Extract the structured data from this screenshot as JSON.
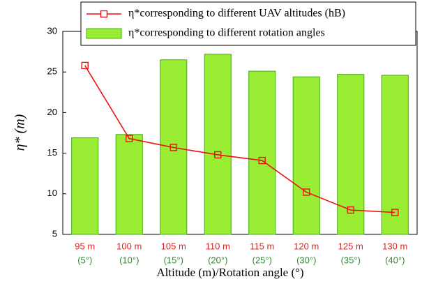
{
  "chart_data": {
    "type": "bar_line",
    "categories": [
      "95 m",
      "100 m",
      "105 m",
      "110 m",
      "115 m",
      "120 m",
      "125 m",
      "130 m"
    ],
    "sub_categories": [
      "(5°)",
      "(10°)",
      "(15°)",
      "(20°)",
      "(25°)",
      "(30°)",
      "(35°)",
      "(40°)"
    ],
    "x_label": "Altitude (m)/Rotation angle (°)",
    "y_label": "η* (m)",
    "ylim": [
      5,
      30
    ],
    "yticks": [
      5,
      10,
      15,
      20,
      25,
      30
    ],
    "legend": "upper right",
    "series": [
      {
        "name": "η*corresponding to different UAV altitudes (hB)",
        "type": "line",
        "color": "#ee1111",
        "values": [
          25.8,
          16.8,
          15.7,
          14.8,
          14.1,
          10.2,
          8.0,
          7.7
        ]
      },
      {
        "name": "η*corresponding to different rotation angles",
        "type": "bar",
        "color": "#99ee33",
        "values": [
          16.9,
          17.3,
          26.5,
          27.2,
          25.1,
          24.4,
          24.7,
          24.6
        ]
      }
    ]
  }
}
